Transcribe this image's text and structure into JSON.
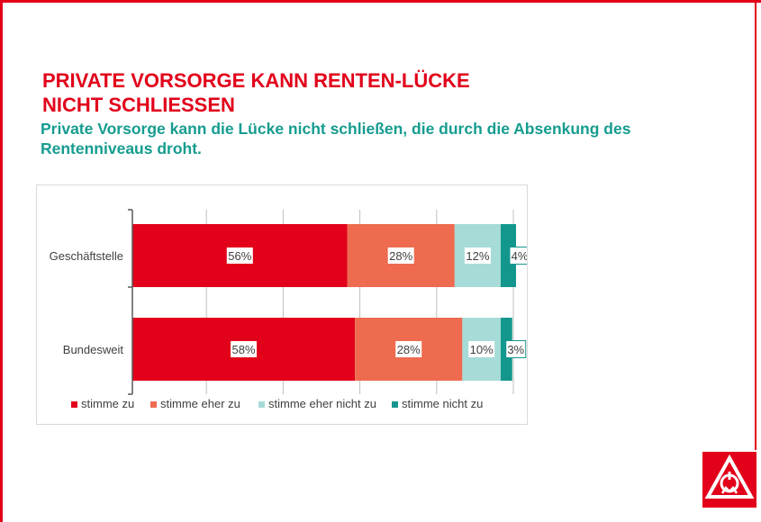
{
  "header": {
    "title_line1": "PRIVATE VORSORGE KANN RENTEN-LÜCKE",
    "title_line2": "NICHT SCHLIESSEN",
    "subtitle": "Private Vorsorge kann die Lücke nicht schließen, die durch die Absenkung des Rentenniveaus droht."
  },
  "colors": {
    "brand_red": "#e2001a",
    "teal_text": "#169c90"
  },
  "chart_data": {
    "type": "bar",
    "orientation": "horizontal",
    "stacked": true,
    "categories": [
      "Geschäftstelle",
      "Bundesweit"
    ],
    "series": [
      {
        "name": "stimme zu",
        "values": [
          56,
          58
        ],
        "labels": [
          "56%",
          "58%"
        ],
        "color": "#e2001a"
      },
      {
        "name": "stimme eher zu",
        "values": [
          28,
          28
        ],
        "labels": [
          "28%",
          "28%"
        ],
        "color": "#ee6b50"
      },
      {
        "name": "stimme eher nicht zu",
        "values": [
          12,
          10
        ],
        "labels": [
          "12%",
          "10%"
        ],
        "color": "#a7dbd7"
      },
      {
        "name": "stimme nicht zu",
        "values": [
          4,
          3
        ],
        "labels": [
          "4%",
          "3%"
        ],
        "color": "#13978d"
      }
    ],
    "xlim": [
      0,
      100
    ],
    "grid": true,
    "legend": "bottom"
  }
}
